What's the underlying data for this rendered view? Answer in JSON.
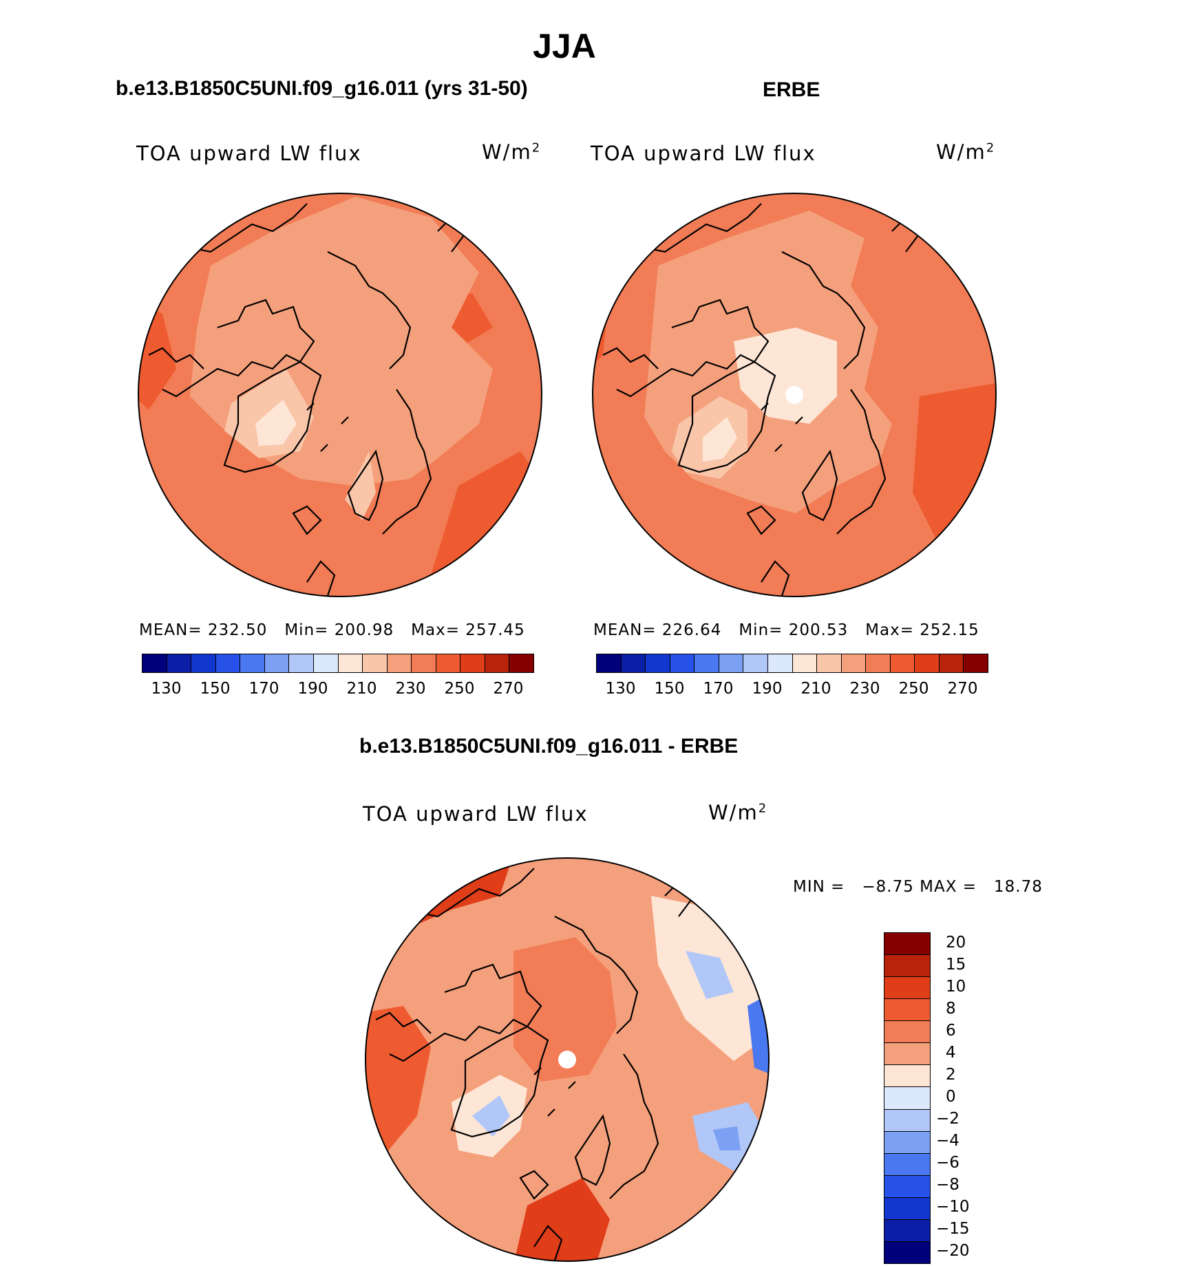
{
  "main_title": "JJA",
  "panels": [
    {
      "title": "b.e13.B1850C5UNI.f09_g16.011 (yrs 31-50)",
      "variable": "TOA upward LW flux",
      "units_base": "W/m",
      "units_exp": "2",
      "mean_label": "MEAN=",
      "mean": "232.50",
      "min_label": "Min=",
      "min": "200.98",
      "max_label": "Max=",
      "max": "257.45",
      "pole_hole": false
    },
    {
      "title": "ERBE",
      "variable": "TOA upward LW flux",
      "units_base": "W/m",
      "units_exp": "2",
      "mean_label": "MEAN=",
      "mean": "226.64",
      "min_label": "Min=",
      "min": "200.53",
      "max_label": "Max=",
      "max": "252.15",
      "pole_hole": true
    }
  ],
  "abs_colorbar": {
    "colors": [
      "#00007c",
      "#0a1ea6",
      "#1237d0",
      "#2752ea",
      "#4a78f0",
      "#7ba0f4",
      "#b1c7f8",
      "#dce8fb",
      "#fde6d6",
      "#f9c6aa",
      "#f5a07c",
      "#f17c55",
      "#ef5b30",
      "#e03d19",
      "#b9230c",
      "#840000"
    ],
    "tick_labels": [
      "130",
      "150",
      "170",
      "190",
      "210",
      "230",
      "250",
      "270"
    ]
  },
  "diff_panel": {
    "title": "b.e13.B1850C5UNI.f09_g16.011 - ERBE",
    "variable": "TOA upward LW flux",
    "units_base": "W/m",
    "units_exp": "2",
    "min_label": "MIN =",
    "min": "−8.75",
    "max_label": "MAX =",
    "max": "18.78",
    "pole_hole": true
  },
  "diff_colorbar": {
    "colors": [
      "#840000",
      "#b9230c",
      "#e03d19",
      "#ef5b30",
      "#f17c55",
      "#f5a07c",
      "#fde6d6",
      "#dce8fb",
      "#b1c7f8",
      "#7ba0f4",
      "#4a78f0",
      "#2752ea",
      "#1237d0",
      "#0a1ea6",
      "#00007c"
    ],
    "tick_labels": [
      "20",
      "15",
      "10",
      "8",
      "6",
      "4",
      "2",
      "0",
      "−2",
      "−4",
      "−6",
      "−8",
      "−10",
      "−15",
      "−20"
    ]
  }
}
